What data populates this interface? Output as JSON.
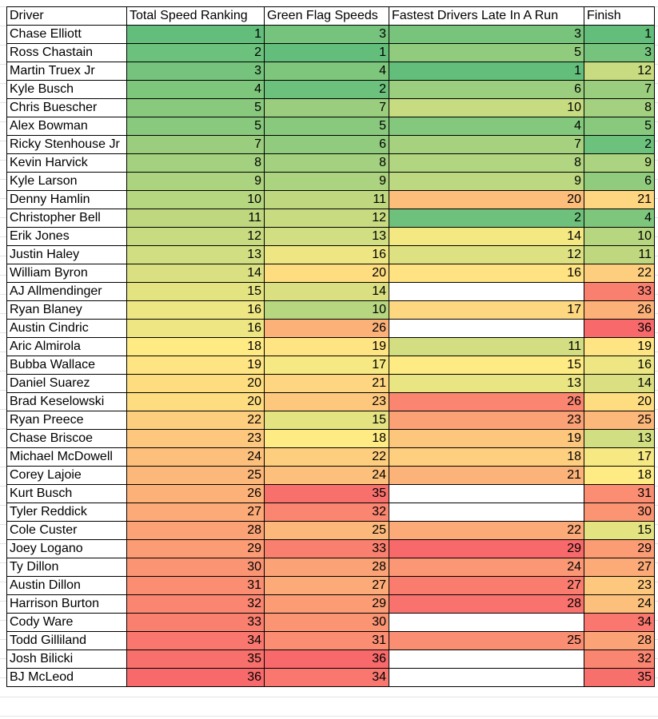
{
  "headers": [
    "Driver",
    "Total Speed Ranking",
    "Green Flag Speeds",
    "Fastest Drivers Late In A Run",
    "Finish"
  ],
  "color_scale": {
    "low": "#63BE7B",
    "mid": "#FFEB84",
    "high": "#F8696B",
    "empty": "#FFFFFF"
  },
  "rows": [
    [
      "Chase Elliott",
      1,
      3,
      3,
      1
    ],
    [
      "Ross Chastain",
      2,
      1,
      5,
      3
    ],
    [
      "Martin Truex Jr",
      3,
      4,
      1,
      12
    ],
    [
      "Kyle Busch",
      4,
      2,
      6,
      7
    ],
    [
      "Chris Buescher",
      5,
      7,
      10,
      8
    ],
    [
      "Alex Bowman",
      5,
      5,
      4,
      5
    ],
    [
      "Ricky Stenhouse Jr",
      7,
      6,
      7,
      2
    ],
    [
      "Kevin Harvick",
      8,
      8,
      8,
      9
    ],
    [
      "Kyle Larson",
      9,
      9,
      9,
      6
    ],
    [
      "Denny Hamlin",
      10,
      11,
      20,
      21
    ],
    [
      "Christopher Bell",
      11,
      12,
      2,
      4
    ],
    [
      "Erik Jones",
      12,
      13,
      14,
      10
    ],
    [
      "Justin Haley",
      13,
      16,
      12,
      11
    ],
    [
      "William Byron",
      14,
      20,
      16,
      22
    ],
    [
      "AJ Allmendinger",
      15,
      14,
      null,
      33
    ],
    [
      "Ryan Blaney",
      16,
      10,
      17,
      26
    ],
    [
      "Austin Cindric",
      16,
      26,
      null,
      36
    ],
    [
      "Aric Almirola",
      18,
      19,
      11,
      19
    ],
    [
      "Bubba Wallace",
      19,
      17,
      15,
      16
    ],
    [
      "Daniel Suarez",
      20,
      21,
      13,
      14
    ],
    [
      "Brad Keselowski",
      20,
      23,
      26,
      20
    ],
    [
      "Ryan Preece",
      22,
      15,
      23,
      25
    ],
    [
      "Chase Briscoe",
      23,
      18,
      19,
      13
    ],
    [
      "Michael McDowell",
      24,
      22,
      18,
      17
    ],
    [
      "Corey Lajoie",
      25,
      24,
      21,
      18
    ],
    [
      "Kurt Busch",
      26,
      35,
      null,
      31
    ],
    [
      "Tyler Reddick",
      27,
      32,
      null,
      30
    ],
    [
      "Cole Custer",
      28,
      25,
      22,
      15
    ],
    [
      "Joey Logano",
      29,
      33,
      29,
      29
    ],
    [
      "Ty Dillon",
      30,
      28,
      24,
      27
    ],
    [
      "Austin Dillon",
      31,
      27,
      27,
      23
    ],
    [
      "Harrison Burton",
      32,
      29,
      28,
      24
    ],
    [
      "Cody Ware",
      33,
      30,
      null,
      34
    ],
    [
      "Todd Gilliland",
      34,
      31,
      25,
      28
    ],
    [
      "Josh Bilicki",
      35,
      36,
      null,
      32
    ],
    [
      "BJ McLeod",
      36,
      34,
      null,
      35
    ]
  ]
}
